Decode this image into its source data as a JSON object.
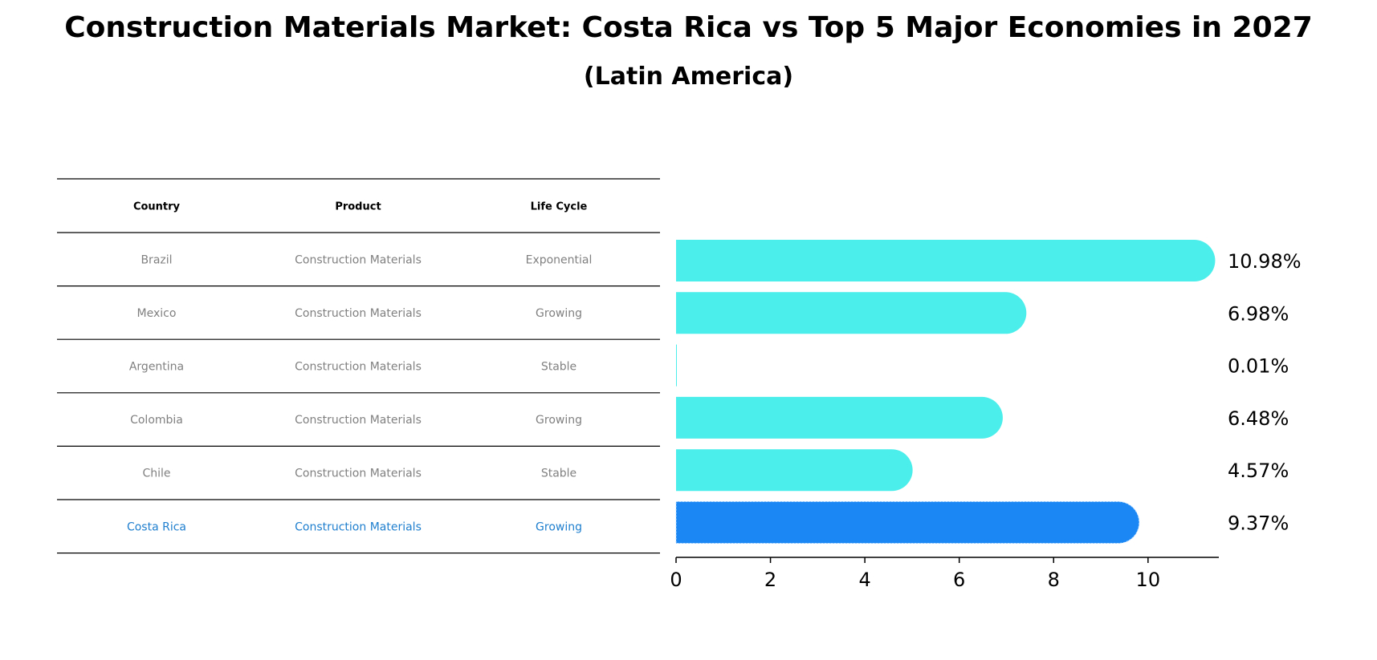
{
  "chart_data": {
    "type": "bar",
    "orientation": "horizontal",
    "title": "Construction Materials Market: Costa Rica vs Top 5 Major Economies in 2027",
    "subtitle": "(Latin America)",
    "table": {
      "columns": [
        "Country",
        "Product",
        "Life Cycle"
      ],
      "rows": [
        [
          "Brazil",
          "Construction Materials",
          "Exponential"
        ],
        [
          "Mexico",
          "Construction Materials",
          "Growing"
        ],
        [
          "Argentina",
          "Construction Materials",
          "Stable"
        ],
        [
          "Colombia",
          "Construction Materials",
          "Growing"
        ],
        [
          "Chile",
          "Construction Materials",
          "Stable"
        ],
        [
          "Costa Rica",
          "Construction Materials",
          "Growing"
        ]
      ],
      "highlight_row": 5
    },
    "categories": [
      "Brazil",
      "Mexico",
      "Argentina",
      "Colombia",
      "Chile",
      "Costa Rica"
    ],
    "values": [
      10.98,
      6.98,
      0.01,
      6.48,
      4.57,
      9.37
    ],
    "value_labels": [
      "10.98%",
      "6.98%",
      "0.01%",
      "6.48%",
      "4.57%",
      "9.37%"
    ],
    "xlim": [
      0,
      11.5
    ],
    "xticks": [
      0,
      2,
      4,
      6,
      8,
      10
    ],
    "grid": false,
    "colors": {
      "bar": "#4beeea",
      "highlight_bar": "#1a87f5",
      "highlight_text": "#1f7fce",
      "row_text": "#808080",
      "header_text": "#000000"
    }
  }
}
